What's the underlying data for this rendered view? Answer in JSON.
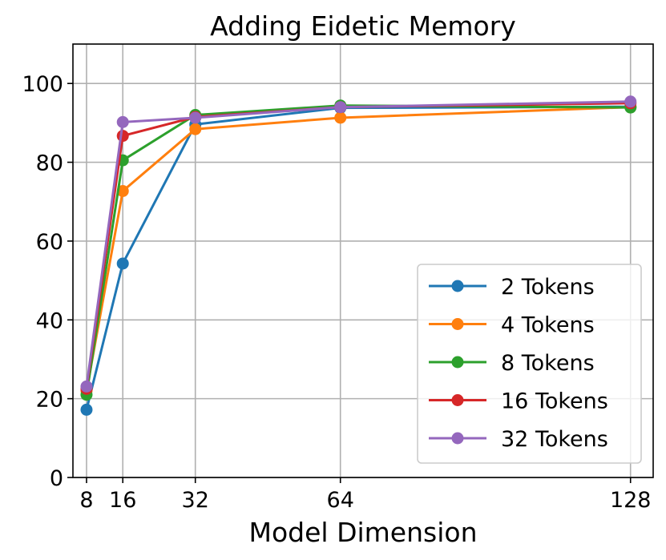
{
  "chart_data": {
    "type": "line",
    "title": "Adding Eidetic Memory",
    "xlabel": "Model Dimension",
    "ylabel": "",
    "x": [
      8,
      16,
      32,
      64,
      128
    ],
    "x_ticks": [
      "8",
      "16",
      "32",
      "64",
      "128"
    ],
    "y_ticks": [
      "0",
      "20",
      "40",
      "60",
      "80",
      "100"
    ],
    "xlim": [
      5,
      133
    ],
    "ylim": [
      0,
      110
    ],
    "grid": true,
    "legend_position": "lower-right",
    "series": [
      {
        "name": "2 Tokens",
        "color": "#1f77b4",
        "values": [
          17.2,
          54.3,
          89.6,
          93.8,
          94.1
        ]
      },
      {
        "name": "4 Tokens",
        "color": "#ff7f0e",
        "values": [
          22.0,
          72.7,
          88.4,
          91.3,
          94.0
        ]
      },
      {
        "name": "8 Tokens",
        "color": "#2ca02c",
        "values": [
          21.0,
          80.5,
          92.0,
          94.4,
          93.9
        ]
      },
      {
        "name": "16 Tokens",
        "color": "#d62728",
        "values": [
          22.5,
          86.7,
          91.5,
          94.0,
          95.0
        ]
      },
      {
        "name": "32 Tokens",
        "color": "#9467bd",
        "values": [
          23.1,
          90.2,
          91.3,
          94.0,
          95.4
        ]
      }
    ]
  }
}
